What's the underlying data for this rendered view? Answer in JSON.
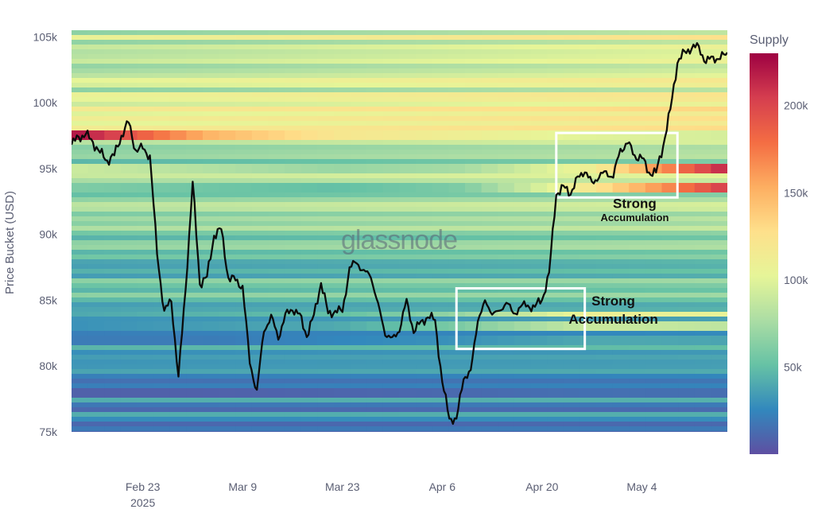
{
  "chart_data": {
    "type": "heatmap",
    "title": "",
    "watermark": "glassnode",
    "ylabel": "Price Bucket (USD)",
    "ylim": [
      75000,
      105500
    ],
    "y_ticks": [
      75000,
      80000,
      85000,
      90000,
      95000,
      100000,
      105000
    ],
    "y_tick_labels": [
      "75k",
      "80k",
      "85k",
      "90k",
      "95k",
      "100k",
      "105k"
    ],
    "x_start": "2025-02-13",
    "x_end": "2025-05-16",
    "x_ticks": [
      {
        "date": "2025-02-23",
        "label": "Feb 23",
        "sublabel": "2025"
      },
      {
        "date": "2025-03-09",
        "label": "Mar 9",
        "sublabel": ""
      },
      {
        "date": "2025-03-23",
        "label": "Mar 23",
        "sublabel": ""
      },
      {
        "date": "2025-04-06",
        "label": "Apr 6",
        "sublabel": ""
      },
      {
        "date": "2025-04-20",
        "label": "Apr 20",
        "sublabel": ""
      },
      {
        "date": "2025-05-04",
        "label": "May 4",
        "sublabel": ""
      }
    ],
    "colorbar": {
      "title": "Supply",
      "min": 0,
      "max": 230000,
      "ticks": [
        50000,
        100000,
        150000,
        200000
      ],
      "tick_labels": [
        "50k",
        "100k",
        "150k",
        "200k"
      ],
      "colorscale": [
        "#5e4fa2",
        "#3288bd",
        "#66c2a5",
        "#abdda4",
        "#e6f598",
        "#fee08b",
        "#fdae61",
        "#f46d43",
        "#d53e4f",
        "#9e0142"
      ]
    },
    "supply_bands": [
      {
        "price": 97500,
        "supply": [
          220000,
          150000,
          120000,
          110000,
          100000,
          95000
        ]
      },
      {
        "price": 95000,
        "supply": [
          90000,
          80000,
          70000,
          75000,
          110000,
          210000
        ]
      },
      {
        "price": 93500,
        "supply": [
          60000,
          55000,
          50000,
          60000,
          120000,
          200000
        ]
      },
      {
        "price": 84000,
        "supply": [
          40000,
          45000,
          50000,
          70000,
          110000,
          105000
        ]
      },
      {
        "price": 83000,
        "supply": [
          30000,
          35000,
          40000,
          60000,
          90000,
          85000
        ]
      },
      {
        "price": 82000,
        "supply": [
          20000,
          20000,
          25000,
          30000,
          40000,
          38000
        ]
      },
      {
        "price": 78000,
        "supply": [
          8000,
          8000,
          10000,
          12000,
          15000,
          14000
        ]
      }
    ],
    "series": [
      {
        "type": "line",
        "x": [
          "2025-02-13",
          "2025-02-14",
          "2025-02-15",
          "2025-02-16",
          "2025-02-17",
          "2025-02-18",
          "2025-02-19",
          "2025-02-20",
          "2025-02-21",
          "2025-02-22",
          "2025-02-23",
          "2025-02-24",
          "2025-02-25",
          "2025-02-26",
          "2025-02-27",
          "2025-02-28",
          "2025-03-01",
          "2025-03-02",
          "2025-03-03",
          "2025-03-04",
          "2025-03-05",
          "2025-03-06",
          "2025-03-07",
          "2025-03-08",
          "2025-03-09",
          "2025-03-10",
          "2025-03-11",
          "2025-03-12",
          "2025-03-13",
          "2025-03-14",
          "2025-03-15",
          "2025-03-16",
          "2025-03-17",
          "2025-03-18",
          "2025-03-19",
          "2025-03-20",
          "2025-03-21",
          "2025-03-22",
          "2025-03-23",
          "2025-03-24",
          "2025-03-25",
          "2025-03-26",
          "2025-03-27",
          "2025-03-28",
          "2025-03-29",
          "2025-03-30",
          "2025-03-31",
          "2025-04-01",
          "2025-04-02",
          "2025-04-03",
          "2025-04-04",
          "2025-04-05",
          "2025-04-06",
          "2025-04-07",
          "2025-04-08",
          "2025-04-09",
          "2025-04-10",
          "2025-04-11",
          "2025-04-12",
          "2025-04-13",
          "2025-04-14",
          "2025-04-15",
          "2025-04-16",
          "2025-04-17",
          "2025-04-18",
          "2025-04-19",
          "2025-04-20",
          "2025-04-21",
          "2025-04-22",
          "2025-04-23",
          "2025-04-24",
          "2025-04-25",
          "2025-04-26",
          "2025-04-27",
          "2025-04-28",
          "2025-04-29",
          "2025-04-30",
          "2025-05-01",
          "2025-05-02",
          "2025-05-03",
          "2025-05-04",
          "2025-05-05",
          "2025-05-06",
          "2025-05-07",
          "2025-05-08",
          "2025-05-09",
          "2025-05-10",
          "2025-05-11",
          "2025-05-12",
          "2025-05-13",
          "2025-05-14",
          "2025-05-15",
          "2025-05-16"
        ],
        "values": [
          96800,
          97400,
          97600,
          97000,
          96200,
          95600,
          96000,
          97500,
          98500,
          96400,
          96500,
          96000,
          88500,
          84200,
          84900,
          79200,
          85800,
          94000,
          86200,
          86800,
          89900,
          90400,
          86700,
          86500,
          86100,
          80200,
          78200,
          82600,
          83900,
          82000,
          84000,
          84200,
          84000,
          82200,
          83900,
          86300,
          84000,
          84200,
          84100,
          87500,
          87800,
          87300,
          86700,
          84800,
          82300,
          82200,
          82600,
          85100,
          82500,
          83400,
          83700,
          83500,
          78800,
          76000,
          76000,
          79000,
          79700,
          83400,
          85000,
          83900,
          84200,
          84800,
          84000,
          84500,
          84600,
          84500,
          85000,
          87100,
          93000,
          93700,
          93000,
          94400,
          94700,
          94000,
          94300,
          94800,
          94300,
          96500,
          96900,
          96000,
          95800,
          94700,
          94700,
          96700,
          99500,
          103000,
          103900,
          104100,
          104300,
          103000,
          103500,
          103300,
          103800
        ]
      }
    ],
    "annotations": [
      {
        "type": "rect",
        "x0": "2025-04-08",
        "x1": "2025-04-26",
        "y0": 81300,
        "y1": 85900
      },
      {
        "type": "rect",
        "x0": "2025-04-22",
        "x1": "2025-05-09",
        "y0": 92800,
        "y1": 97700
      },
      {
        "type": "text",
        "text": "Strong",
        "x": "2025-05-03",
        "y": 92000,
        "size": "big"
      },
      {
        "type": "text",
        "text": "Accumulation",
        "x": "2025-05-03",
        "y": 91000,
        "size": "small"
      },
      {
        "type": "text",
        "text": "Strong",
        "x": "2025-04-30",
        "y": 84600,
        "size": "big"
      },
      {
        "type": "text",
        "text": "Accumulation",
        "x": "2025-04-30",
        "y": 83200,
        "size": "big"
      }
    ]
  }
}
